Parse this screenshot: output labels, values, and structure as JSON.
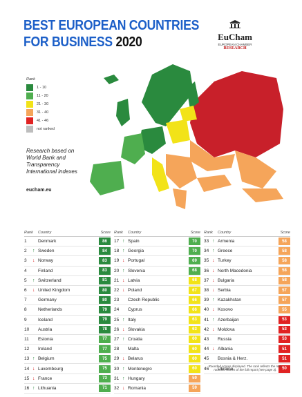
{
  "header": {
    "title_line1": "BEST EUROPEAN COUNTRIES",
    "title_line2": "FOR BUSINESS",
    "year": "2020",
    "logo": {
      "name": "EuCham",
      "subtitle": "EUROPEAN CHAMBER",
      "tag": "RESEARCH"
    }
  },
  "legend": {
    "title": "Rank",
    "items": [
      {
        "label": "1 - 10",
        "color": "#2a8a3e"
      },
      {
        "label": "11 - 20",
        "color": "#4fae4f"
      },
      {
        "label": "21 - 30",
        "color": "#f2e318"
      },
      {
        "label": "31 - 40",
        "color": "#f5a55a"
      },
      {
        "label": "41 - 46",
        "color": "#e02222"
      },
      {
        "label": "not ranked",
        "color": "#bdbdbd"
      }
    ]
  },
  "note": "Research based on World Bank and Transparency International indexes",
  "website": "eucham.eu",
  "table": {
    "headers": [
      "Rank",
      "Country",
      "Score"
    ],
    "columns": [
      [
        {
          "rank": 1,
          "country": "Denmark",
          "score": 86,
          "color": "#2a8a3e"
        },
        {
          "rank": 2,
          "trend": "↑",
          "country": "Sweden",
          "score": 84,
          "color": "#2a8a3e"
        },
        {
          "rank": 3,
          "trend": "↓",
          "country": "Norway",
          "score": 83,
          "color": "#2a8a3e"
        },
        {
          "rank": 4,
          "country": "Finland",
          "score": 83,
          "color": "#2a8a3e"
        },
        {
          "rank": 5,
          "trend": "↑",
          "country": "Switzerland",
          "score": 81,
          "color": "#2a8a3e"
        },
        {
          "rank": 6,
          "trend": "↓",
          "country": "United Kingdom",
          "score": 80,
          "color": "#2a8a3e"
        },
        {
          "rank": 7,
          "country": "Germany",
          "score": 80,
          "color": "#2a8a3e"
        },
        {
          "rank": 8,
          "country": "Netherlands",
          "score": 79,
          "color": "#2a8a3e"
        },
        {
          "rank": 9,
          "country": "Iceland",
          "score": 79,
          "color": "#2a8a3e"
        },
        {
          "rank": 10,
          "country": "Austria",
          "score": 78,
          "color": "#2a8a3e"
        },
        {
          "rank": 11,
          "country": "Estonia",
          "score": 77,
          "color": "#4fae4f"
        },
        {
          "rank": 12,
          "country": "Ireland",
          "score": 77,
          "color": "#4fae4f"
        },
        {
          "rank": 13,
          "trend": "↑",
          "country": "Belgium",
          "score": 75,
          "color": "#4fae4f"
        },
        {
          "rank": 14,
          "trend": "↓",
          "country": "Luxembourg",
          "score": 75,
          "color": "#4fae4f"
        },
        {
          "rank": 15,
          "trend": "↓",
          "country": "France",
          "score": 73,
          "color": "#4fae4f"
        },
        {
          "rank": 16,
          "trend": "↑",
          "country": "Lithuania",
          "score": 71,
          "color": "#4fae4f"
        }
      ],
      [
        {
          "rank": 17,
          "trend": "↑",
          "country": "Spain",
          "score": 70,
          "color": "#4fae4f"
        },
        {
          "rank": 18,
          "trend": "↑",
          "country": "Georgia",
          "score": 70,
          "color": "#4fae4f"
        },
        {
          "rank": 19,
          "trend": "↓",
          "country": "Portugal",
          "score": 69,
          "color": "#4fae4f"
        },
        {
          "rank": 20,
          "trend": "↑",
          "country": "Slovenia",
          "score": 68,
          "color": "#4fae4f"
        },
        {
          "rank": 21,
          "trend": "↓",
          "country": "Latvia",
          "score": 68,
          "color": "#f2e318"
        },
        {
          "rank": 22,
          "trend": "↓",
          "country": "Poland",
          "score": 67,
          "color": "#f2e318"
        },
        {
          "rank": 23,
          "country": "Czech Republic",
          "score": 66,
          "color": "#f2e318"
        },
        {
          "rank": 24,
          "country": "Cyprus",
          "score": 66,
          "color": "#f2e318"
        },
        {
          "rank": 25,
          "trend": "↑",
          "country": "Italy",
          "score": 63,
          "color": "#f2e318"
        },
        {
          "rank": 26,
          "trend": "↓",
          "country": "Slovakia",
          "score": 63,
          "color": "#f2e318"
        },
        {
          "rank": 27,
          "trend": "↑",
          "country": "Croatia",
          "score": 60,
          "color": "#f2e318"
        },
        {
          "rank": 28,
          "country": "Malta",
          "score": 60,
          "color": "#f2e318"
        },
        {
          "rank": 29,
          "trend": "↓",
          "country": "Belarus",
          "score": 60,
          "color": "#f2e318"
        },
        {
          "rank": 30,
          "trend": "↑",
          "country": "Montenegro",
          "score": 60,
          "color": "#f2e318"
        },
        {
          "rank": 31,
          "trend": "↑",
          "country": "Hungary",
          "score": 59,
          "color": "#f5a55a"
        },
        {
          "rank": 32,
          "trend": "↓",
          "country": "Romania",
          "score": 59,
          "color": "#f5a55a"
        }
      ],
      [
        {
          "rank": 33,
          "trend": "↑",
          "country": "Armenia",
          "score": 58,
          "color": "#f5a55a"
        },
        {
          "rank": 34,
          "trend": "↑",
          "country": "Greece",
          "score": 58,
          "color": "#f5a55a"
        },
        {
          "rank": 35,
          "trend": "↓",
          "country": "Turkey",
          "score": 58,
          "color": "#f5a55a"
        },
        {
          "rank": 36,
          "trend": "↓",
          "country": "North Macedonia",
          "score": 58,
          "color": "#f5a55a"
        },
        {
          "rank": 37,
          "trend": "↓",
          "country": "Bulgaria",
          "score": 58,
          "color": "#f5a55a"
        },
        {
          "rank": 38,
          "trend": "↓",
          "country": "Serbia",
          "score": 57,
          "color": "#f5a55a"
        },
        {
          "rank": 39,
          "trend": "↑",
          "country": "Kazakhstan",
          "score": 57,
          "color": "#f5a55a"
        },
        {
          "rank": 40,
          "trend": "↓",
          "country": "Kosovo",
          "score": 55,
          "color": "#f5a55a"
        },
        {
          "rank": 41,
          "trend": "↑",
          "country": "Azerbaijan",
          "score": 53,
          "color": "#e02222"
        },
        {
          "rank": 42,
          "trend": "↓",
          "country": "Moldova",
          "score": 53,
          "color": "#e02222"
        },
        {
          "rank": 43,
          "country": "Russia",
          "score": 53,
          "color": "#e02222"
        },
        {
          "rank": 44,
          "trend": "↓",
          "country": "Albania",
          "score": 51,
          "color": "#e02222"
        },
        {
          "rank": 45,
          "country": "Bosnia & Herz.",
          "score": 51,
          "color": "#e02222"
        },
        {
          "rank": 46,
          "country": "Ukraine",
          "score": 50,
          "color": "#e02222"
        }
      ]
    ]
  },
  "footnote": "Rounded scores displayed. The rank reflects the non-rounded scores of the full report (see page 3)."
}
